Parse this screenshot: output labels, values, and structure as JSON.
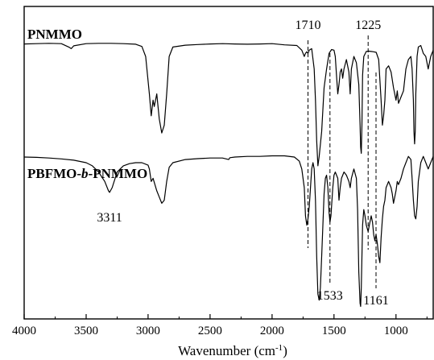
{
  "chart_data": {
    "type": "line",
    "title": "",
    "xlabel": "Wavenumber (cm",
    "xlabel_sup": "-1",
    "xlabel_end": ")",
    "ylabel": "",
    "xlim": [
      4000,
      700
    ],
    "x_reversed": true,
    "xticks": [
      4000,
      3500,
      3000,
      2500,
      2000,
      1500,
      1000
    ],
    "xtick_labels": [
      "4000",
      "3500",
      "3000",
      "2500",
      "2000",
      "1500",
      "1000"
    ],
    "ylim": [
      0,
      1
    ],
    "grid": false,
    "line_color": "#000000",
    "series": [
      {
        "name": "PNMMO",
        "name_parts": [
          {
            "text": "PNMMO",
            "italic": false
          }
        ],
        "x": [
          4000,
          3900,
          3800,
          3700,
          3640,
          3620,
          3600,
          3500,
          3400,
          3300,
          3200,
          3100,
          3050,
          3020,
          2990,
          2975,
          2960,
          2950,
          2930,
          2910,
          2890,
          2870,
          2850,
          2830,
          2800,
          2700,
          2600,
          2500,
          2400,
          2300,
          2200,
          2100,
          2000,
          1900,
          1800,
          1760,
          1740,
          1730,
          1720,
          1710,
          1700,
          1680,
          1660,
          1650,
          1640,
          1630,
          1620,
          1600,
          1580,
          1560,
          1540,
          1520,
          1500,
          1490,
          1480,
          1470,
          1460,
          1450,
          1440,
          1430,
          1420,
          1400,
          1380,
          1370,
          1360,
          1340,
          1320,
          1300,
          1290,
          1285,
          1280,
          1275,
          1270,
          1260,
          1240,
          1220,
          1200,
          1180,
          1160,
          1140,
          1120,
          1110,
          1100,
          1090,
          1080,
          1060,
          1040,
          1020,
          1000,
          990,
          980,
          960,
          940,
          920,
          900,
          880,
          870,
          860,
          855,
          850,
          845,
          840,
          830,
          820,
          800,
          780,
          760,
          740,
          720,
          700
        ],
        "y": [
          0.88,
          0.881,
          0.882,
          0.881,
          0.87,
          0.865,
          0.874,
          0.881,
          0.882,
          0.882,
          0.881,
          0.879,
          0.872,
          0.84,
          0.72,
          0.65,
          0.7,
          0.68,
          0.72,
          0.64,
          0.595,
          0.62,
          0.72,
          0.84,
          0.87,
          0.876,
          0.878,
          0.88,
          0.881,
          0.88,
          0.879,
          0.88,
          0.881,
          0.877,
          0.875,
          0.86,
          0.84,
          0.85,
          0.855,
          0.85,
          0.86,
          0.865,
          0.8,
          0.7,
          0.57,
          0.49,
          0.52,
          0.6,
          0.74,
          0.8,
          0.85,
          0.862,
          0.86,
          0.84,
          0.78,
          0.72,
          0.75,
          0.79,
          0.8,
          0.77,
          0.8,
          0.83,
          0.79,
          0.72,
          0.8,
          0.84,
          0.82,
          0.75,
          0.62,
          0.55,
          0.53,
          0.62,
          0.78,
          0.84,
          0.856,
          0.857,
          0.856,
          0.855,
          0.853,
          0.83,
          0.7,
          0.62,
          0.65,
          0.7,
          0.8,
          0.81,
          0.79,
          0.74,
          0.7,
          0.73,
          0.69,
          0.71,
          0.73,
          0.8,
          0.83,
          0.84,
          0.8,
          0.7,
          0.6,
          0.56,
          0.6,
          0.72,
          0.84,
          0.87,
          0.875,
          0.85,
          0.84,
          0.8,
          0.84,
          0.86
        ]
      },
      {
        "name": "PBFMO-b-PNMMO",
        "name_parts": [
          {
            "text": "PBFMO-",
            "italic": false
          },
          {
            "text": "b",
            "italic": true
          },
          {
            "text": "-PNMMO",
            "italic": false
          }
        ],
        "x": [
          4000,
          3900,
          3800,
          3700,
          3600,
          3500,
          3450,
          3400,
          3350,
          3320,
          3311,
          3290,
          3250,
          3200,
          3150,
          3100,
          3050,
          3000,
          2990,
          2975,
          2960,
          2930,
          2910,
          2890,
          2870,
          2850,
          2830,
          2800,
          2700,
          2600,
          2500,
          2400,
          2350,
          2340,
          2300,
          2200,
          2100,
          2000,
          1900,
          1820,
          1780,
          1760,
          1740,
          1730,
          1720,
          1710,
          1700,
          1690,
          1680,
          1670,
          1660,
          1650,
          1640,
          1630,
          1620,
          1610,
          1600,
          1590,
          1580,
          1570,
          1560,
          1550,
          1540,
          1533,
          1525,
          1510,
          1500,
          1490,
          1470,
          1460,
          1450,
          1440,
          1420,
          1400,
          1380,
          1370,
          1360,
          1340,
          1320,
          1310,
          1300,
          1290,
          1285,
          1280,
          1270,
          1260,
          1250,
          1240,
          1225,
          1215,
          1200,
          1190,
          1180,
          1170,
          1161,
          1150,
          1140,
          1130,
          1120,
          1110,
          1100,
          1090,
          1080,
          1060,
          1040,
          1030,
          1020,
          1000,
          990,
          980,
          960,
          940,
          920,
          900,
          880,
          870,
          860,
          850,
          840,
          830,
          820,
          800,
          780,
          760,
          740,
          720,
          700
        ],
        "y": [
          0.518,
          0.517,
          0.515,
          0.512,
          0.508,
          0.5,
          0.49,
          0.47,
          0.44,
          0.41,
          0.405,
          0.42,
          0.47,
          0.49,
          0.497,
          0.5,
          0.5,
          0.492,
          0.48,
          0.44,
          0.45,
          0.41,
          0.39,
          0.37,
          0.38,
          0.44,
          0.485,
          0.5,
          0.51,
          0.513,
          0.515,
          0.515,
          0.51,
          0.516,
          0.518,
          0.52,
          0.52,
          0.522,
          0.522,
          0.518,
          0.505,
          0.48,
          0.42,
          0.33,
          0.3,
          0.32,
          0.36,
          0.42,
          0.48,
          0.5,
          0.48,
          0.38,
          0.2,
          0.08,
          0.06,
          0.1,
          0.2,
          0.3,
          0.4,
          0.45,
          0.46,
          0.42,
          0.34,
          0.31,
          0.33,
          0.42,
          0.46,
          0.47,
          0.45,
          0.38,
          0.42,
          0.45,
          0.47,
          0.46,
          0.44,
          0.42,
          0.45,
          0.48,
          0.45,
          0.35,
          0.15,
          0.05,
          0.04,
          0.1,
          0.3,
          0.35,
          0.33,
          0.3,
          0.28,
          0.3,
          0.33,
          0.31,
          0.27,
          0.25,
          0.27,
          0.24,
          0.2,
          0.18,
          0.26,
          0.32,
          0.36,
          0.38,
          0.42,
          0.44,
          0.42,
          0.4,
          0.37,
          0.41,
          0.44,
          0.43,
          0.45,
          0.48,
          0.5,
          0.52,
          0.51,
          0.45,
          0.38,
          0.33,
          0.32,
          0.36,
          0.44,
          0.5,
          0.52,
          0.5,
          0.48,
          0.5,
          0.52
        ]
      }
    ],
    "annotations": [
      {
        "label": "1710",
        "x": 1710,
        "dashed_line": true
      },
      {
        "label": "1533",
        "x": 1533,
        "dashed_line": true
      },
      {
        "label": "1225",
        "x": 1225,
        "dashed_line": true
      },
      {
        "label": "1161",
        "x": 1161,
        "dashed_line": true
      },
      {
        "label": "3311",
        "x": 3311,
        "dashed_line": false
      }
    ]
  }
}
